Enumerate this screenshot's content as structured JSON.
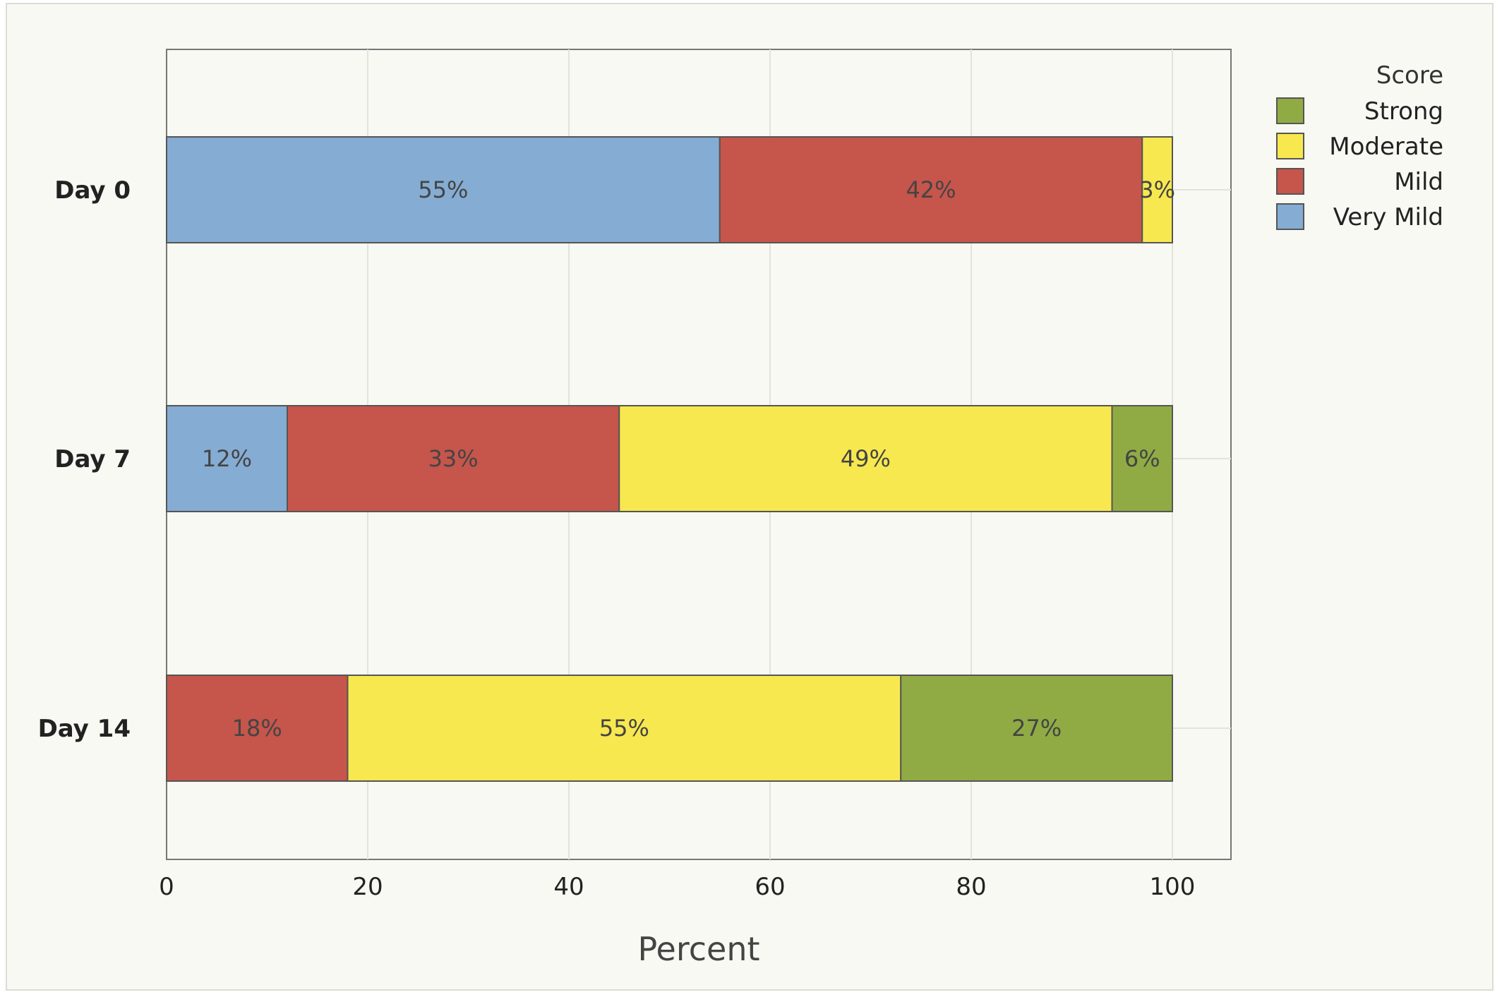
{
  "chart_data": {
    "type": "bar",
    "orientation": "horizontal",
    "stacked": true,
    "categories": [
      "Day 0",
      "Day 7",
      "Day 14"
    ],
    "series": [
      {
        "name": "Very Mild",
        "values": [
          55,
          12,
          0
        ],
        "labels": [
          "55%",
          "12%",
          ""
        ],
        "color": "#85acd3"
      },
      {
        "name": "Mild",
        "values": [
          42,
          33,
          18
        ],
        "labels": [
          "42%",
          "33%",
          "18%"
        ],
        "color": "#c6554b"
      },
      {
        "name": "Moderate",
        "values": [
          3,
          49,
          55
        ],
        "labels": [
          "3%",
          "49%",
          "55%"
        ],
        "color": "#f7e850"
      },
      {
        "name": "Strong",
        "values": [
          0,
          6,
          27
        ],
        "labels": [
          "",
          "6%",
          "27%"
        ],
        "color": "#90ab44"
      }
    ],
    "xlabel": "Percent",
    "ylabel": "",
    "xlim": [
      0,
      106
    ],
    "xticks": [
      0,
      20,
      40,
      60,
      80,
      100
    ],
    "xtick_labels": [
      "0",
      "20",
      "40",
      "60",
      "80",
      "100"
    ],
    "grid": true,
    "legend": {
      "title": "Score",
      "position": "right",
      "order": [
        "Strong",
        "Moderate",
        "Mild",
        "Very Mild"
      ]
    }
  }
}
